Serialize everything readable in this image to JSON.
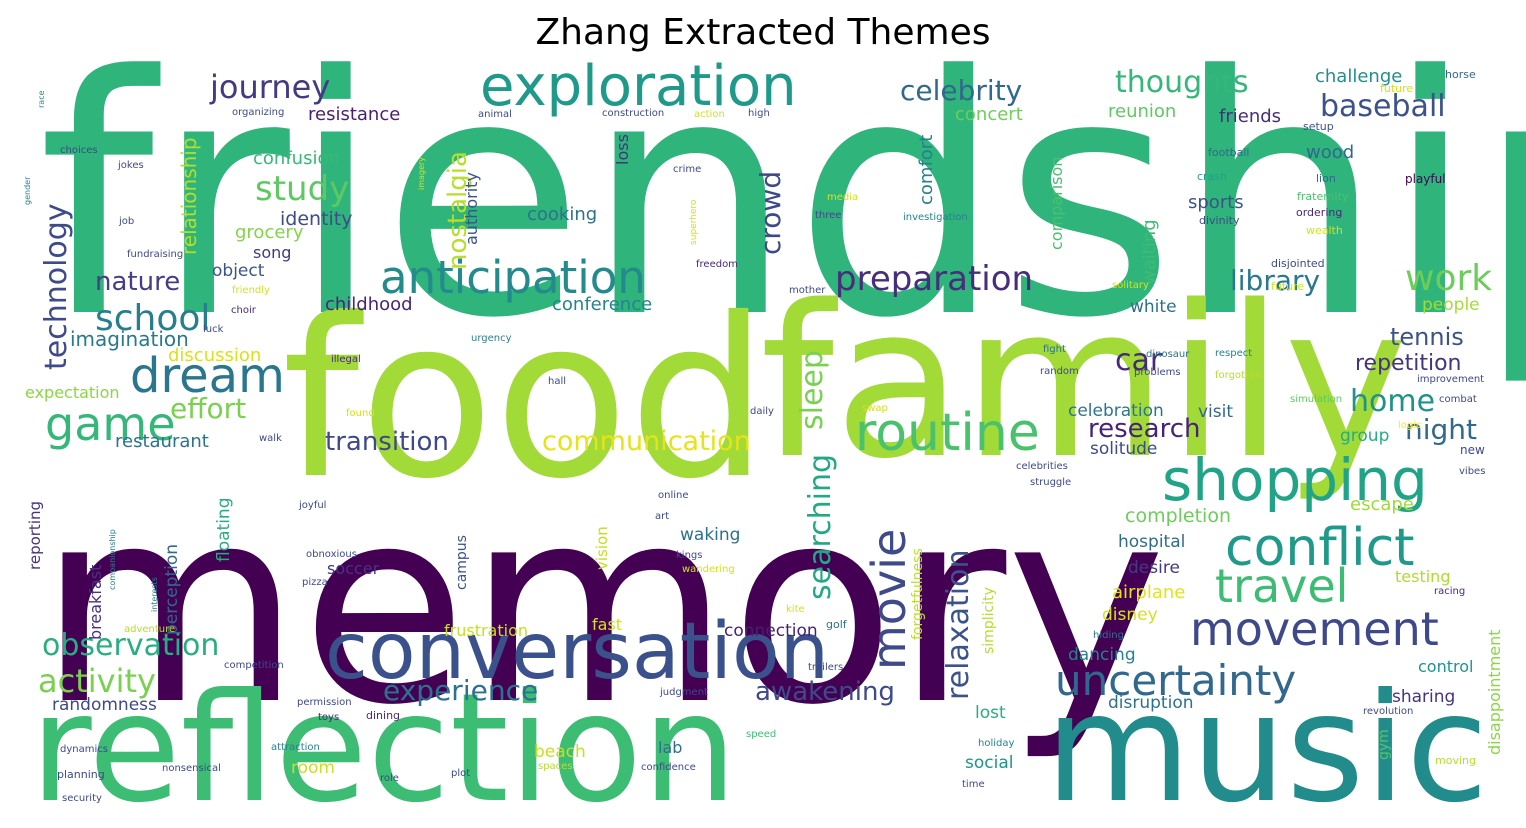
{
  "title": "Zhang Extracted Themes",
  "palette": [
    "#440154",
    "#482878",
    "#3e4989",
    "#31688e",
    "#26828e",
    "#1f9e89",
    "#35b779",
    "#6ece58",
    "#b5de2b",
    "#fde725"
  ],
  "words": [
    {
      "t": "friendship",
      "c": "#2fb47c"
    },
    {
      "t": "food",
      "c": "#a2da37"
    },
    {
      "t": "family",
      "c": "#a2da37"
    },
    {
      "t": "memory",
      "c": "#440154"
    },
    {
      "t": "reflection",
      "c": "#3dbc74"
    },
    {
      "t": "music",
      "c": "#228c8d"
    },
    {
      "t": "conversation",
      "c": "#3b518b"
    },
    {
      "t": "exploration",
      "c": "#1f9a8a"
    },
    {
      "t": "anticipation",
      "c": "#238a8d"
    },
    {
      "t": "routine",
      "c": "#4ac16d"
    },
    {
      "t": "shopping",
      "c": "#20a386"
    },
    {
      "t": "conflict",
      "c": "#1f998a"
    },
    {
      "t": "travel",
      "c": "#3dbc74"
    },
    {
      "t": "movement",
      "c": "#3e4989"
    },
    {
      "t": "uncertainty",
      "c": "#31688e"
    },
    {
      "t": "dream",
      "c": "#2a768e"
    },
    {
      "t": "game",
      "c": "#35b779"
    },
    {
      "t": "school",
      "c": "#277f8e"
    },
    {
      "t": "movie",
      "c": "#3e4a89"
    },
    {
      "t": "preparation",
      "c": "#472d7b"
    },
    {
      "t": "work",
      "c": "#6ccd5a"
    },
    {
      "t": "journey",
      "c": "#443983"
    },
    {
      "t": "study",
      "c": "#5ec962"
    },
    {
      "t": "thoughts",
      "c": "#35b779"
    },
    {
      "t": "baseball",
      "c": "#3b528b"
    },
    {
      "t": "celebrity",
      "c": "#31688e"
    },
    {
      "t": "effort",
      "c": "#7ad151"
    },
    {
      "t": "observation",
      "c": "#29af7f"
    },
    {
      "t": "activity",
      "c": "#7ad151"
    },
    {
      "t": "experience",
      "c": "#2c728e"
    },
    {
      "t": "awakening",
      "c": "#3e4a89"
    },
    {
      "t": "relaxation",
      "c": "#3b528b"
    },
    {
      "t": "searching",
      "c": "#22a884"
    },
    {
      "t": "technology",
      "c": "#3e4a89"
    },
    {
      "t": "nature",
      "c": "#433e85"
    },
    {
      "t": "transition",
      "c": "#3e4989"
    },
    {
      "t": "communication",
      "c": "#e5e419"
    },
    {
      "t": "research",
      "c": "#482374"
    },
    {
      "t": "home",
      "c": "#20928c"
    },
    {
      "t": "night",
      "c": "#31688e"
    },
    {
      "t": "car",
      "c": "#482878"
    },
    {
      "t": "library",
      "c": "#2a788e"
    },
    {
      "t": "tennis",
      "c": "#3b528b"
    },
    {
      "t": "repetition",
      "c": "#46337f"
    },
    {
      "t": "sleep",
      "c": "#7ad151"
    },
    {
      "t": "crowd",
      "c": "#3e4989"
    },
    {
      "t": "nostalgia",
      "c": "#b8de29"
    },
    {
      "t": "relationship",
      "c": "#b5de2b"
    },
    {
      "t": "imagination",
      "c": "#2a788e"
    },
    {
      "t": "restaurant",
      "c": "#2c728e"
    },
    {
      "t": "discussion",
      "c": "#d8e219"
    },
    {
      "t": "expectation",
      "c": "#8bd646"
    },
    {
      "t": "childhood",
      "c": "#482576"
    },
    {
      "t": "conference",
      "c": "#25848e"
    },
    {
      "t": "cooking",
      "c": "#2c728e"
    },
    {
      "t": "identity",
      "c": "#3e4a89"
    },
    {
      "t": "grocery",
      "c": "#84d44b"
    },
    {
      "t": "song",
      "c": "#453882"
    },
    {
      "t": "object",
      "c": "#3a548c"
    },
    {
      "t": "confusion",
      "c": "#37b878"
    },
    {
      "t": "resistance",
      "c": "#481f70"
    },
    {
      "t": "concert",
      "c": "#6ece58"
    },
    {
      "t": "comfort",
      "c": "#27808e"
    },
    {
      "t": "comparison",
      "c": "#4ac16d"
    },
    {
      "t": "authority",
      "c": "#3b528b"
    },
    {
      "t": "loss",
      "c": "#46327e"
    },
    {
      "t": "reunion",
      "c": "#5ec962"
    },
    {
      "t": "friends",
      "c": "#472d7b"
    },
    {
      "t": "challenge",
      "c": "#218f8d"
    },
    {
      "t": "wood",
      "c": "#31688e"
    },
    {
      "t": "sports",
      "c": "#3b528b"
    },
    {
      "t": "waiting",
      "c": "#3fbc73"
    },
    {
      "t": "people",
      "c": "#a5db36"
    },
    {
      "t": "white",
      "c": "#2d708e"
    },
    {
      "t": "celebration",
      "c": "#2b758e"
    },
    {
      "t": "visit",
      "c": "#31688e"
    },
    {
      "t": "solitude",
      "c": "#3e4989"
    },
    {
      "t": "group",
      "c": "#26ad81"
    },
    {
      "t": "completion",
      "c": "#6ccd5a"
    },
    {
      "t": "escape",
      "c": "#a0da39"
    },
    {
      "t": "hospital",
      "c": "#2f6c8e"
    },
    {
      "t": "desire",
      "c": "#443a83"
    },
    {
      "t": "airplane",
      "c": "#e2e418"
    },
    {
      "t": "disney",
      "c": "#d2e21b"
    },
    {
      "t": "testing",
      "c": "#addc30"
    },
    {
      "t": "disappointment",
      "c": "#8bd646"
    },
    {
      "t": "lost",
      "c": "#27ad81"
    },
    {
      "t": "dancing",
      "c": "#26828e"
    },
    {
      "t": "social",
      "c": "#20928c"
    },
    {
      "t": "disruption",
      "c": "#2d708e"
    },
    {
      "t": "sharing",
      "c": "#46337f"
    },
    {
      "t": "control",
      "c": "#1f948c"
    },
    {
      "t": "gym",
      "c": "#50c46a"
    },
    {
      "t": "randomness",
      "c": "#3e4989"
    },
    {
      "t": "waking",
      "c": "#2d708e"
    },
    {
      "t": "soccer",
      "c": "#463480"
    },
    {
      "t": "fast",
      "c": "#d2e21b"
    },
    {
      "t": "frustration",
      "c": "#c2df23"
    },
    {
      "t": "connection",
      "c": "#481f70"
    },
    {
      "t": "beach",
      "c": "#c5e021"
    },
    {
      "t": "lab",
      "c": "#2e6f8e"
    },
    {
      "t": "room",
      "c": "#c8e020"
    },
    {
      "t": "floating",
      "c": "#29af7f"
    },
    {
      "t": "perception",
      "c": "#31688e"
    },
    {
      "t": "breakfast",
      "c": "#46327e"
    },
    {
      "t": "reporting",
      "c": "#46327e"
    },
    {
      "t": "vision",
      "c": "#c2df23"
    },
    {
      "t": "campus",
      "c": "#3b528b"
    },
    {
      "t": "forgetfulness",
      "c": "#bddf26"
    },
    {
      "t": "simplicity",
      "c": "#b5de2b"
    },
    {
      "t": "horse",
      "c": "#31688e"
    },
    {
      "t": "future",
      "c": "#d2e21b"
    },
    {
      "t": "setup",
      "c": "#3b528b"
    },
    {
      "t": "football",
      "c": "#31688e"
    },
    {
      "t": "crash",
      "c": "#20a386"
    },
    {
      "t": "lion",
      "c": "#31688e"
    },
    {
      "t": "playful",
      "c": "#440154"
    },
    {
      "t": "fraternity",
      "c": "#4ac16d"
    },
    {
      "t": "ordering",
      "c": "#482878"
    },
    {
      "t": "divinity",
      "c": "#3e4989"
    },
    {
      "t": "wealth",
      "c": "#d2e21b"
    },
    {
      "t": "disjointed",
      "c": "#3e4989"
    },
    {
      "t": "future",
      "c": "#d2e21b"
    },
    {
      "t": "solitary",
      "c": "#d2e21b"
    },
    {
      "t": "fight",
      "c": "#2c728e"
    },
    {
      "t": "dinosaur",
      "c": "#2c728e"
    },
    {
      "t": "respect",
      "c": "#26828e"
    },
    {
      "t": "random",
      "c": "#3e4989"
    },
    {
      "t": "problems",
      "c": "#3e4989"
    },
    {
      "t": "forgotten",
      "c": "#b5de2b"
    },
    {
      "t": "simulation",
      "c": "#5ec962"
    },
    {
      "t": "improvement",
      "c": "#3e4989"
    },
    {
      "t": "logic",
      "c": "#fde725"
    },
    {
      "t": "combat",
      "c": "#3e4989"
    },
    {
      "t": "new",
      "c": "#3e4989"
    },
    {
      "t": "vibes",
      "c": "#3e4989"
    },
    {
      "t": "celebrities",
      "c": "#3e4989"
    },
    {
      "t": "struggle",
      "c": "#3e4989"
    },
    {
      "t": "racing",
      "c": "#482878"
    },
    {
      "t": "moving",
      "c": "#b5de2b"
    },
    {
      "t": "revolution",
      "c": "#3e4989"
    },
    {
      "t": "hiding",
      "c": "#2c728e"
    },
    {
      "t": "holiday",
      "c": "#26828e"
    },
    {
      "t": "time",
      "c": "#3e4989"
    },
    {
      "t": "kite",
      "c": "#d2e21b"
    },
    {
      "t": "golf",
      "c": "#2c728e"
    },
    {
      "t": "trailers",
      "c": "#3e4989"
    },
    {
      "t": "judgment",
      "c": "#3e4989"
    },
    {
      "t": "speed",
      "c": "#3dbc74"
    },
    {
      "t": "dining",
      "c": "#482878"
    },
    {
      "t": "toys",
      "c": "#482878"
    },
    {
      "t": "permission",
      "c": "#3e4989"
    },
    {
      "t": "attraction",
      "c": "#26828e"
    },
    {
      "t": "role",
      "c": "#3e4989"
    },
    {
      "t": "plot",
      "c": "#3e4989"
    },
    {
      "t": "spaces",
      "c": "#b5de2b"
    },
    {
      "t": "confidence",
      "c": "#3e4989"
    },
    {
      "t": "nonsensical",
      "c": "#3e4989"
    },
    {
      "t": "dynamics",
      "c": "#3e4989"
    },
    {
      "t": "planning",
      "c": "#3e4989"
    },
    {
      "t": "security",
      "c": "#3e4989"
    },
    {
      "t": "competition",
      "c": "#3e4989"
    },
    {
      "t": "adventure",
      "c": "#b5de2b"
    },
    {
      "t": "interests",
      "c": "#26828e"
    },
    {
      "t": "companionship",
      "c": "#26828e"
    },
    {
      "t": "obnoxious",
      "c": "#3e4989"
    },
    {
      "t": "pizza",
      "c": "#3e4989"
    },
    {
      "t": "joyful",
      "c": "#3e4989"
    },
    {
      "t": "online",
      "c": "#3e4989"
    },
    {
      "t": "art",
      "c": "#3e4989"
    },
    {
      "t": "kings",
      "c": "#3e4989"
    },
    {
      "t": "wandering",
      "c": "#d2e21b"
    },
    {
      "t": "illegal",
      "c": "#482878"
    },
    {
      "t": "hall",
      "c": "#3e4989"
    },
    {
      "t": "daily",
      "c": "#3e4989"
    },
    {
      "t": "swap",
      "c": "#d2e21b"
    },
    {
      "t": "found",
      "c": "#d2e21b"
    },
    {
      "t": "walk",
      "c": "#3e4989"
    },
    {
      "t": "luck",
      "c": "#3e4989"
    },
    {
      "t": "choir",
      "c": "#482878"
    },
    {
      "t": "friendly",
      "c": "#d2e21b"
    },
    {
      "t": "urgency",
      "c": "#26828e"
    },
    {
      "t": "mother",
      "c": "#3e4989"
    },
    {
      "t": "freedom",
      "c": "#482878"
    },
    {
      "t": "media",
      "c": "#d2e21b"
    },
    {
      "t": "three",
      "c": "#3e4989"
    },
    {
      "t": "investigation",
      "c": "#26828e"
    },
    {
      "t": "superhero",
      "c": "#d2e21b"
    },
    {
      "t": "crime",
      "c": "#3e4989"
    },
    {
      "t": "imagery",
      "c": "#d2e21b"
    },
    {
      "t": "animal",
      "c": "#3e4989"
    },
    {
      "t": "construction",
      "c": "#3e4989"
    },
    {
      "t": "action",
      "c": "#d2e21b"
    },
    {
      "t": "high",
      "c": "#3e4989"
    },
    {
      "t": "organizing",
      "c": "#3e4989"
    },
    {
      "t": "jokes",
      "c": "#3e4989"
    },
    {
      "t": "choices",
      "c": "#3e4989"
    },
    {
      "t": "job",
      "c": "#3e4989"
    },
    {
      "t": "fundraising",
      "c": "#3e4989"
    },
    {
      "t": "gender",
      "c": "#26828e"
    },
    {
      "t": "race",
      "c": "#26828e"
    }
  ]
}
